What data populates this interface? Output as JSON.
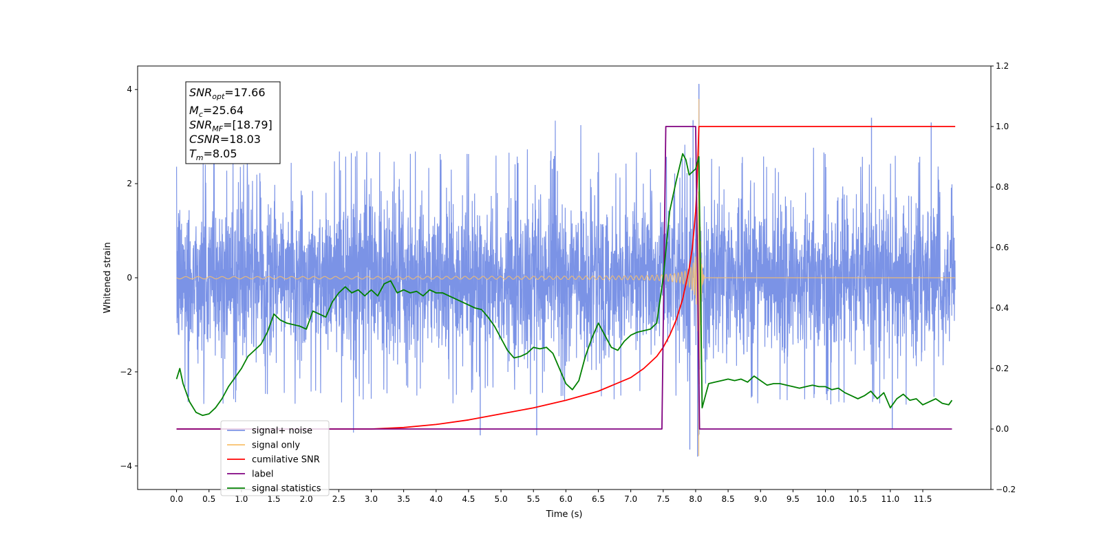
{
  "chart_data": {
    "type": "line",
    "xlabel": "Time (s)",
    "ylabel_left": "Whitened strain",
    "ylabel_right": "",
    "xlim": [
      -0.6,
      12.55
    ],
    "ylim_left": [
      -4.5,
      4.5
    ],
    "ylim_right": [
      -0.2,
      1.2
    ],
    "x_ticks": [
      "0.0",
      "0.5",
      "1.0",
      "1.5",
      "2.0",
      "2.5",
      "3.0",
      "3.5",
      "4.0",
      "4.5",
      "5.0",
      "5.5",
      "6.0",
      "6.5",
      "7.0",
      "7.5",
      "8.0",
      "8.5",
      "9.0",
      "9.5",
      "10.0",
      "10.5",
      "11.0",
      "11.5"
    ],
    "y_ticks_left": [
      "−4",
      "−2",
      "0",
      "2",
      "4"
    ],
    "y_ticks_right": [
      "−0.2",
      "0.0",
      "0.2",
      "0.4",
      "0.6",
      "0.8",
      "1.0",
      "1.2"
    ],
    "annotation": {
      "snr_opt": {
        "sym": "SNR",
        "sub": "opt",
        "value": "=17.66"
      },
      "mc": {
        "sym": "M",
        "sub": "c",
        "value": "=25.64"
      },
      "snr_mf": {
        "sym": "SNR",
        "sub": "MF",
        "value": "=[18.79]"
      },
      "csnr": {
        "sym": "CSNR",
        "sub": "",
        "value": "=18.03"
      },
      "tm": {
        "sym": "T",
        "sub": "m",
        "value": "=8.05"
      }
    },
    "legend": {
      "placement": "lower-left",
      "entries": [
        {
          "label": "signal+ noise",
          "color": "#7b93e6"
        },
        {
          "label": "signal only",
          "color": "#f9c06a"
        },
        {
          "label": "cumilative SNR",
          "color": "#ff0000"
        },
        {
          "label": "label",
          "color": "#800080"
        },
        {
          "label": "signal statistics",
          "color": "#008000"
        }
      ]
    },
    "series": [
      {
        "name": "signal+ noise",
        "axis": "left",
        "color": "#7b93e6",
        "t_range": [
          0.0,
          12.0
        ],
        "noise_sigma": 0.85,
        "noise_extreme": 2.7,
        "peaks": [
          {
            "t": 8.05,
            "y": 4.12
          },
          {
            "t": 7.96,
            "y": 3.35
          },
          {
            "t": 7.91,
            "y": -3.65
          },
          {
            "t": 8.03,
            "y": -3.8
          },
          {
            "t": 10.71,
            "y": 3.4
          },
          {
            "t": 11.63,
            "y": 3.3
          },
          {
            "t": 11.03,
            "y": -3.2
          },
          {
            "t": 4.68,
            "y": -3.35
          },
          {
            "t": 5.55,
            "y": -3.35
          }
        ]
      },
      {
        "name": "signal only",
        "axis": "left",
        "color": "#f9c06a",
        "merger_time": 8.05,
        "peak_amplitude": 3.8
      },
      {
        "name": "cumilative SNR",
        "axis": "right",
        "color": "#ff0000",
        "x": [
          0.0,
          3.0,
          3.5,
          4.0,
          4.5,
          5.0,
          5.5,
          6.0,
          6.5,
          7.0,
          7.2,
          7.4,
          7.5,
          7.6,
          7.7,
          7.8,
          7.9,
          7.95,
          8.0,
          8.02,
          8.05,
          12.0
        ],
        "y": [
          0.0,
          0.0,
          0.005,
          0.015,
          0.03,
          0.05,
          0.07,
          0.095,
          0.125,
          0.17,
          0.2,
          0.24,
          0.27,
          0.31,
          0.36,
          0.43,
          0.53,
          0.6,
          0.72,
          0.8,
          1.0,
          1.0
        ]
      },
      {
        "name": "label",
        "axis": "right",
        "color": "#800080",
        "x": [
          0.0,
          7.48,
          7.54,
          8.0,
          8.06,
          11.95
        ],
        "y": [
          0.0,
          0.0,
          1.0,
          1.0,
          0.0,
          0.0
        ]
      },
      {
        "name": "signal statistics",
        "axis": "right",
        "color": "#008000",
        "x": [
          0.0,
          0.05,
          0.1,
          0.2,
          0.3,
          0.4,
          0.5,
          0.6,
          0.7,
          0.8,
          0.9,
          1.0,
          1.1,
          1.2,
          1.3,
          1.4,
          1.5,
          1.6,
          1.7,
          1.8,
          1.9,
          2.0,
          2.1,
          2.2,
          2.3,
          2.4,
          2.5,
          2.6,
          2.7,
          2.8,
          2.9,
          3.0,
          3.1,
          3.2,
          3.3,
          3.4,
          3.5,
          3.6,
          3.7,
          3.8,
          3.9,
          4.0,
          4.1,
          4.2,
          4.3,
          4.4,
          4.5,
          4.6,
          4.7,
          4.8,
          4.9,
          5.0,
          5.1,
          5.2,
          5.3,
          5.4,
          5.5,
          5.6,
          5.7,
          5.8,
          5.9,
          6.0,
          6.1,
          6.2,
          6.3,
          6.4,
          6.5,
          6.6,
          6.7,
          6.8,
          6.9,
          7.0,
          7.1,
          7.2,
          7.3,
          7.4,
          7.5,
          7.6,
          7.7,
          7.8,
          7.85,
          7.9,
          7.95,
          8.0,
          8.05,
          8.1,
          8.2,
          8.3,
          8.4,
          8.5,
          8.6,
          8.7,
          8.8,
          8.9,
          9.0,
          9.1,
          9.2,
          9.3,
          9.4,
          9.5,
          9.6,
          9.7,
          9.8,
          9.9,
          10.0,
          10.1,
          10.2,
          10.3,
          10.4,
          10.5,
          10.6,
          10.7,
          10.8,
          10.9,
          11.0,
          11.1,
          11.2,
          11.3,
          11.4,
          11.5,
          11.6,
          11.7,
          11.8,
          11.9,
          11.95
        ],
        "y": [
          0.165,
          0.2,
          0.15,
          0.09,
          0.055,
          0.045,
          0.05,
          0.07,
          0.1,
          0.14,
          0.17,
          0.2,
          0.24,
          0.26,
          0.28,
          0.32,
          0.38,
          0.36,
          0.35,
          0.345,
          0.34,
          0.33,
          0.39,
          0.38,
          0.37,
          0.42,
          0.45,
          0.47,
          0.45,
          0.46,
          0.44,
          0.46,
          0.44,
          0.48,
          0.49,
          0.45,
          0.46,
          0.45,
          0.455,
          0.44,
          0.46,
          0.45,
          0.45,
          0.44,
          0.43,
          0.42,
          0.41,
          0.4,
          0.395,
          0.37,
          0.34,
          0.3,
          0.26,
          0.235,
          0.24,
          0.25,
          0.27,
          0.265,
          0.27,
          0.25,
          0.2,
          0.15,
          0.13,
          0.16,
          0.24,
          0.3,
          0.35,
          0.31,
          0.27,
          0.26,
          0.29,
          0.31,
          0.32,
          0.325,
          0.33,
          0.35,
          0.5,
          0.72,
          0.82,
          0.91,
          0.89,
          0.84,
          0.85,
          0.86,
          0.9,
          0.07,
          0.15,
          0.155,
          0.16,
          0.165,
          0.16,
          0.165,
          0.155,
          0.175,
          0.16,
          0.145,
          0.15,
          0.15,
          0.145,
          0.14,
          0.135,
          0.14,
          0.145,
          0.14,
          0.14,
          0.13,
          0.135,
          0.12,
          0.11,
          0.1,
          0.11,
          0.125,
          0.1,
          0.12,
          0.07,
          0.1,
          0.115,
          0.095,
          0.1,
          0.08,
          0.09,
          0.1,
          0.085,
          0.08,
          0.095
        ]
      }
    ]
  }
}
